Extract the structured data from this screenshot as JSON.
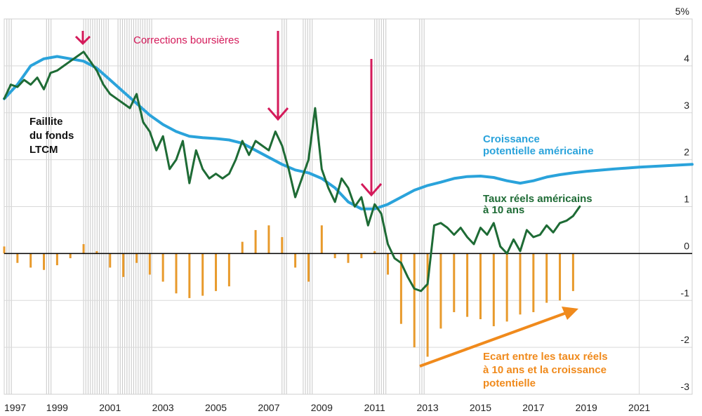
{
  "chart_data": {
    "type": "line",
    "y_unit": "%",
    "ylim": [
      -3,
      5
    ],
    "y_ticks": [
      "5%",
      "4",
      "3",
      "2",
      "1",
      "0",
      "-1",
      "-2",
      "-3"
    ],
    "x_ticks": [
      "1997",
      "1999",
      "2001",
      "2003",
      "2005",
      "2007",
      "2009",
      "2011",
      "2013",
      "2015",
      "2017",
      "2019",
      "2021"
    ],
    "xlim": [
      1997.0,
      2023.0
    ],
    "grid": true,
    "colors": {
      "potential": "#2aa3db",
      "real_rates": "#1e6b35",
      "gap": "#e89a2c",
      "arrow_red": "#d41a5a",
      "arrow_orange": "#f08a1c",
      "recession_band": "#c8c8c8",
      "zero_line": "#000000"
    },
    "series": [
      {
        "id": "potential",
        "name": "Croissance potentielle américaine",
        "x": [
          1997.0,
          1997.5,
          1998.0,
          1998.5,
          1999.0,
          1999.5,
          2000.0,
          2000.5,
          2001.0,
          2001.5,
          2002.0,
          2002.5,
          2003.0,
          2003.5,
          2004.0,
          2004.5,
          2005.0,
          2005.5,
          2006.0,
          2006.5,
          2007.0,
          2007.5,
          2008.0,
          2008.5,
          2009.0,
          2009.5,
          2010.0,
          2010.5,
          2011.0,
          2011.5,
          2012.0,
          2012.5,
          2013.0,
          2013.5,
          2014.0,
          2014.5,
          2015.0,
          2015.5,
          2016.0,
          2016.5,
          2017.0,
          2017.5,
          2018.0,
          2018.5,
          2019.0,
          2020.0,
          2021.0,
          2022.0,
          2023.0
        ],
        "y": [
          3.3,
          3.6,
          4.0,
          4.15,
          4.2,
          4.15,
          4.1,
          3.95,
          3.7,
          3.45,
          3.2,
          2.95,
          2.75,
          2.6,
          2.5,
          2.47,
          2.45,
          2.42,
          2.35,
          2.2,
          2.05,
          1.9,
          1.78,
          1.72,
          1.6,
          1.4,
          1.1,
          0.95,
          0.95,
          1.05,
          1.2,
          1.35,
          1.45,
          1.52,
          1.6,
          1.64,
          1.65,
          1.62,
          1.55,
          1.5,
          1.55,
          1.63,
          1.68,
          1.72,
          1.75,
          1.8,
          1.84,
          1.87,
          1.9
        ]
      },
      {
        "id": "real_rates",
        "name": "Taux réels américains à 10 ans",
        "x": [
          1997.0,
          1997.25,
          1997.5,
          1997.75,
          1998.0,
          1998.25,
          1998.5,
          1998.75,
          1999.0,
          1999.25,
          1999.5,
          1999.75,
          2000.0,
          2000.25,
          2000.5,
          2000.75,
          2001.0,
          2001.25,
          2001.5,
          2001.75,
          2002.0,
          2002.25,
          2002.5,
          2002.75,
          2003.0,
          2003.25,
          2003.5,
          2003.75,
          2004.0,
          2004.25,
          2004.5,
          2004.75,
          2005.0,
          2005.25,
          2005.5,
          2005.75,
          2006.0,
          2006.25,
          2006.5,
          2006.75,
          2007.0,
          2007.25,
          2007.5,
          2007.75,
          2008.0,
          2008.25,
          2008.5,
          2008.75,
          2009.0,
          2009.25,
          2009.5,
          2009.75,
          2010.0,
          2010.25,
          2010.5,
          2010.75,
          2011.0,
          2011.25,
          2011.5,
          2011.75,
          2012.0,
          2012.25,
          2012.5,
          2012.75,
          2013.0,
          2013.25,
          2013.5,
          2013.75,
          2014.0,
          2014.25,
          2014.5,
          2014.75,
          2015.0,
          2015.25,
          2015.5,
          2015.75,
          2016.0,
          2016.25,
          2016.5,
          2016.75,
          2017.0,
          2017.25,
          2017.5,
          2017.75,
          2018.0,
          2018.25,
          2018.5,
          2018.75
        ],
        "y": [
          3.3,
          3.6,
          3.55,
          3.7,
          3.6,
          3.75,
          3.5,
          3.85,
          3.9,
          4.0,
          4.1,
          4.2,
          4.3,
          4.1,
          3.9,
          3.6,
          3.4,
          3.3,
          3.2,
          3.1,
          3.4,
          2.8,
          2.6,
          2.2,
          2.5,
          1.8,
          2.0,
          2.4,
          1.5,
          2.2,
          1.8,
          1.6,
          1.7,
          1.6,
          1.7,
          2.0,
          2.4,
          2.1,
          2.4,
          2.3,
          2.2,
          2.6,
          2.3,
          1.8,
          1.2,
          1.6,
          2.0,
          3.1,
          1.8,
          1.4,
          1.1,
          1.6,
          1.4,
          1.0,
          1.2,
          0.6,
          1.05,
          0.85,
          0.2,
          -0.1,
          -0.2,
          -0.5,
          -0.75,
          -0.8,
          -0.65,
          0.6,
          0.65,
          0.55,
          0.4,
          0.55,
          0.35,
          0.2,
          0.55,
          0.4,
          0.65,
          0.15,
          0.0,
          0.3,
          0.05,
          0.5,
          0.35,
          0.4,
          0.6,
          0.45,
          0.65,
          0.7,
          0.8,
          1.0
        ]
      },
      {
        "id": "gap",
        "name": "Ecart entre les taux réels à 10 ans et la croissance potentielle",
        "type": "bar",
        "x": [
          1997.0,
          1997.5,
          1998.0,
          1998.5,
          1999.0,
          1999.5,
          2000.0,
          2000.5,
          2001.0,
          2001.5,
          2002.0,
          2002.5,
          2003.0,
          2003.5,
          2004.0,
          2004.5,
          2005.0,
          2005.5,
          2006.0,
          2006.5,
          2007.0,
          2007.5,
          2008.0,
          2008.5,
          2009.0,
          2009.5,
          2010.0,
          2010.5,
          2011.0,
          2011.5,
          2012.0,
          2012.5,
          2013.0,
          2013.5,
          2014.0,
          2014.5,
          2015.0,
          2015.5,
          2016.0,
          2016.5,
          2017.0,
          2017.5,
          2018.0,
          2018.5
        ],
        "y": [
          0.15,
          -0.2,
          -0.3,
          -0.35,
          -0.25,
          -0.1,
          0.2,
          0.05,
          -0.3,
          -0.5,
          -0.2,
          -0.45,
          -0.6,
          -0.85,
          -0.95,
          -0.9,
          -0.8,
          -0.7,
          0.25,
          0.5,
          0.6,
          0.35,
          -0.3,
          -0.6,
          0.6,
          -0.1,
          -0.2,
          -0.1,
          0.05,
          -0.45,
          -1.5,
          -2.0,
          -2.2,
          -1.6,
          -1.25,
          -1.35,
          -1.4,
          -1.55,
          -1.45,
          -1.3,
          -1.25,
          -1.05,
          -1.0,
          -0.8
        ]
      }
    ],
    "recession_bands": [
      [
        1997.1,
        1997.3
      ],
      [
        1998.6,
        1998.8
      ],
      [
        2000.0,
        2001.0
      ],
      [
        2001.3,
        2002.6
      ],
      [
        2007.5,
        2007.7
      ],
      [
        2008.3,
        2008.7
      ],
      [
        2011.0,
        2011.5
      ],
      [
        2012.7,
        2012.9
      ]
    ]
  },
  "annotations": {
    "corrections": "Corrections boursières",
    "ltcm": [
      "Faillite",
      "du fonds",
      "LTCM"
    ],
    "potential_label": [
      "Croissance",
      "potentielle américaine"
    ],
    "real_label": [
      "Taux réels américains",
      "à 10 ans"
    ],
    "gap_label": [
      "Ecart entre les taux réels",
      "à 10 ans et la croissance",
      "potentielle"
    ]
  }
}
